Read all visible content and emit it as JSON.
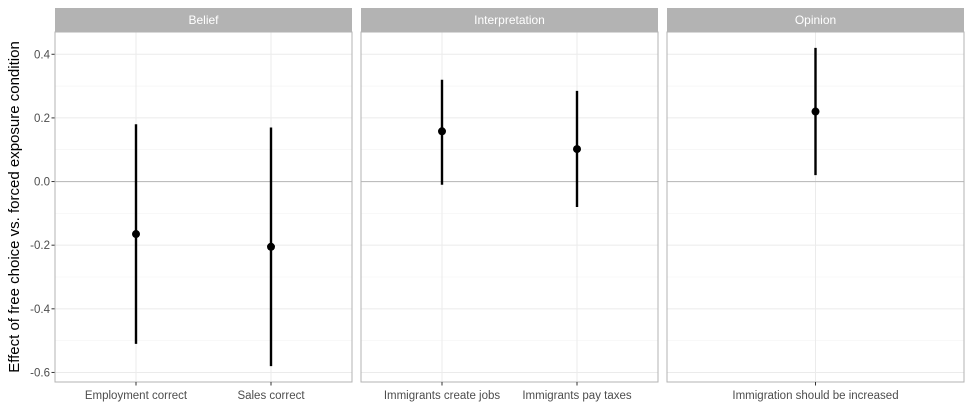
{
  "chart_data": {
    "type": "scatter",
    "ylabel": "Effect of free choice vs. forced exposure condition",
    "xlabel": "",
    "ylim": [
      -0.63,
      0.47
    ],
    "y_ticks": [
      -0.6,
      -0.4,
      -0.2,
      0.0,
      0.2,
      0.4
    ],
    "y_tick_labels": [
      "-0.6",
      "-0.4",
      "-0.2",
      "0.0",
      "0.2",
      "0.4"
    ],
    "reference_line": 0.0,
    "grid": true,
    "panels": [
      {
        "title": "Belief",
        "categories": [
          "Employment correct",
          "Sales correct"
        ],
        "estimates": [
          -0.165,
          -0.205
        ],
        "lower": [
          -0.51,
          -0.58
        ],
        "upper": [
          0.18,
          0.17
        ]
      },
      {
        "title": "Interpretation",
        "categories": [
          "Immigrants create jobs",
          "Immigrants pay taxes"
        ],
        "estimates": [
          0.158,
          0.102
        ],
        "lower": [
          -0.01,
          -0.08
        ],
        "upper": [
          0.32,
          0.285
        ]
      },
      {
        "title": "Opinion",
        "categories": [
          "Immigration should be increased"
        ],
        "estimates": [
          0.22
        ],
        "lower": [
          0.02
        ],
        "upper": [
          0.42
        ]
      }
    ]
  }
}
